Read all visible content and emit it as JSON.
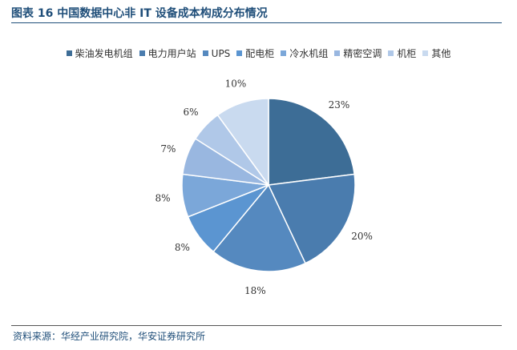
{
  "title": "图表 16 中国数据中心非 IT 设备成本构成分布情况",
  "source": "资料来源：华经产业研究院，华安证券研究所",
  "chart_data": {
    "type": "pie",
    "title": "",
    "categories": [
      "柴油发电机组",
      "电力用户站",
      "UPS",
      "配电柜",
      "冷水机组",
      "精密空调",
      "机柜",
      "其他"
    ],
    "values": [
      23,
      20,
      18,
      8,
      8,
      7,
      6,
      10
    ],
    "data_labels": [
      "23%",
      "20%",
      "18%",
      "8%",
      "8%",
      "7%",
      "6%",
      "10%"
    ],
    "colors": [
      "#3d6d96",
      "#4a7cae",
      "#5589bf",
      "#5b95d1",
      "#7ba7d9",
      "#99b7e0",
      "#b0c8e8",
      "#c9daef"
    ],
    "start_angle": "12 o'clock",
    "direction": "clockwise",
    "legend_position": "top"
  }
}
